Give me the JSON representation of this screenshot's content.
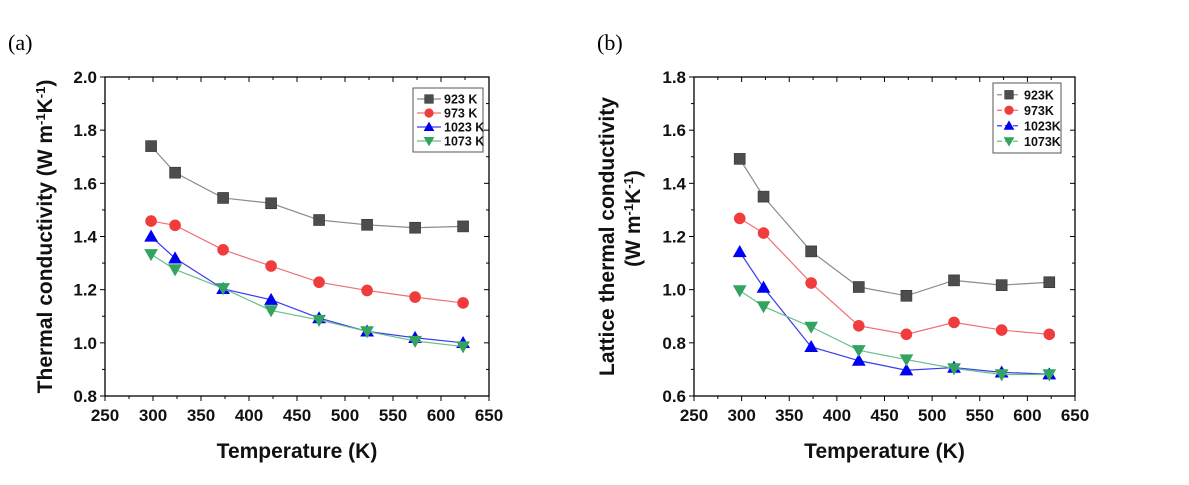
{
  "chart_data": [
    {
      "type": "line",
      "panel_label": "(a)",
      "title": "",
      "xlabel": "Temperature (K)",
      "ylabel": "Thermal conductivity (W m⁻¹K⁻¹)",
      "ylabel_parts": {
        "main": "Thermal conductivity (W m",
        "sup1": "-1",
        "mid": "K",
        "sup2": "-1",
        "end": ")"
      },
      "xlim": [
        250,
        650
      ],
      "ylim": [
        0.8,
        2.0
      ],
      "xticks": [
        250,
        300,
        350,
        400,
        450,
        500,
        550,
        600,
        650
      ],
      "xtick_labels": [
        "250",
        "300",
        "350",
        "400",
        "450",
        "500",
        "550",
        "600",
        "650"
      ],
      "yticks": [
        0.8,
        1.0,
        1.2,
        1.4,
        1.6,
        1.8,
        2.0
      ],
      "ytick_labels": [
        "0.8",
        "1.0",
        "1.2",
        "1.4",
        "1.6",
        "1.8",
        "2.0"
      ],
      "grid": false,
      "legend_position": "top-right",
      "x": [
        298,
        323,
        373,
        423,
        473,
        523,
        573,
        623
      ],
      "series": [
        {
          "name": "923 K",
          "marker": "square",
          "color": "#4d4d4d",
          "line_color": "#8c8c8c",
          "values": [
            1.74,
            1.64,
            1.545,
            1.525,
            1.462,
            1.444,
            1.433,
            1.438
          ]
        },
        {
          "name": "973 K",
          "marker": "circle",
          "color": "#f03c3c",
          "line_color": "#f07070",
          "values": [
            1.458,
            1.442,
            1.35,
            1.289,
            1.228,
            1.197,
            1.172,
            1.15
          ]
        },
        {
          "name": "1023 K",
          "marker": "triangle-up",
          "color": "#0000f5",
          "line_color": "#3a3af0",
          "values": [
            1.4,
            1.318,
            1.203,
            1.162,
            1.093,
            1.043,
            1.019,
            1.0
          ]
        },
        {
          "name": "1073 K",
          "marker": "triangle-down",
          "color": "#33a35f",
          "line_color": "#66c08a",
          "values": [
            1.333,
            1.276,
            1.205,
            1.122,
            1.086,
            1.043,
            1.007,
            0.986
          ]
        }
      ]
    },
    {
      "type": "line",
      "panel_label": "(b)",
      "title": "",
      "xlabel": "Temperature (K)",
      "ylabel": "Lattice thermal conductivity (W m⁻¹K⁻¹)",
      "ylabel_line1": "Lattice thermal conductivity",
      "ylabel_parts": {
        "main": "(W m",
        "sup1": "-1",
        "mid": "K",
        "sup2": "-1",
        "end": ")"
      },
      "xlim": [
        250,
        650
      ],
      "ylim": [
        0.6,
        1.8
      ],
      "xticks": [
        250,
        300,
        350,
        400,
        450,
        500,
        550,
        600,
        650
      ],
      "xtick_labels": [
        "250",
        "300",
        "350",
        "400",
        "450",
        "500",
        "550",
        "600",
        "650"
      ],
      "yticks": [
        0.6,
        0.8,
        1.0,
        1.2,
        1.4,
        1.6,
        1.8
      ],
      "ytick_labels": [
        "0.6",
        "0.8",
        "1.0",
        "1.2",
        "1.4",
        "1.6",
        "1.8"
      ],
      "grid": false,
      "legend_position": "top-right",
      "x": [
        298,
        323,
        373,
        423,
        473,
        523,
        573,
        623
      ],
      "series": [
        {
          "name": "923K",
          "marker": "square",
          "color": "#4d4d4d",
          "line_color": "#8c8c8c",
          "values": [
            1.492,
            1.35,
            1.144,
            1.01,
            0.977,
            1.035,
            1.017,
            1.028
          ]
        },
        {
          "name": "973K",
          "marker": "circle",
          "color": "#f03c3c",
          "line_color": "#f07070",
          "values": [
            1.268,
            1.213,
            1.025,
            0.864,
            0.832,
            0.877,
            0.848,
            0.832
          ]
        },
        {
          "name": "1023K",
          "marker": "triangle-up",
          "color": "#0000f5",
          "line_color": "#3a3af0",
          "values": [
            1.142,
            1.008,
            0.785,
            0.733,
            0.697,
            0.707,
            0.689,
            0.682
          ]
        },
        {
          "name": "1073K",
          "marker": "triangle-down",
          "color": "#33a35f",
          "line_color": "#66c08a",
          "values": [
            0.997,
            0.937,
            0.86,
            0.772,
            0.737,
            0.704,
            0.681,
            0.681
          ]
        }
      ]
    }
  ]
}
